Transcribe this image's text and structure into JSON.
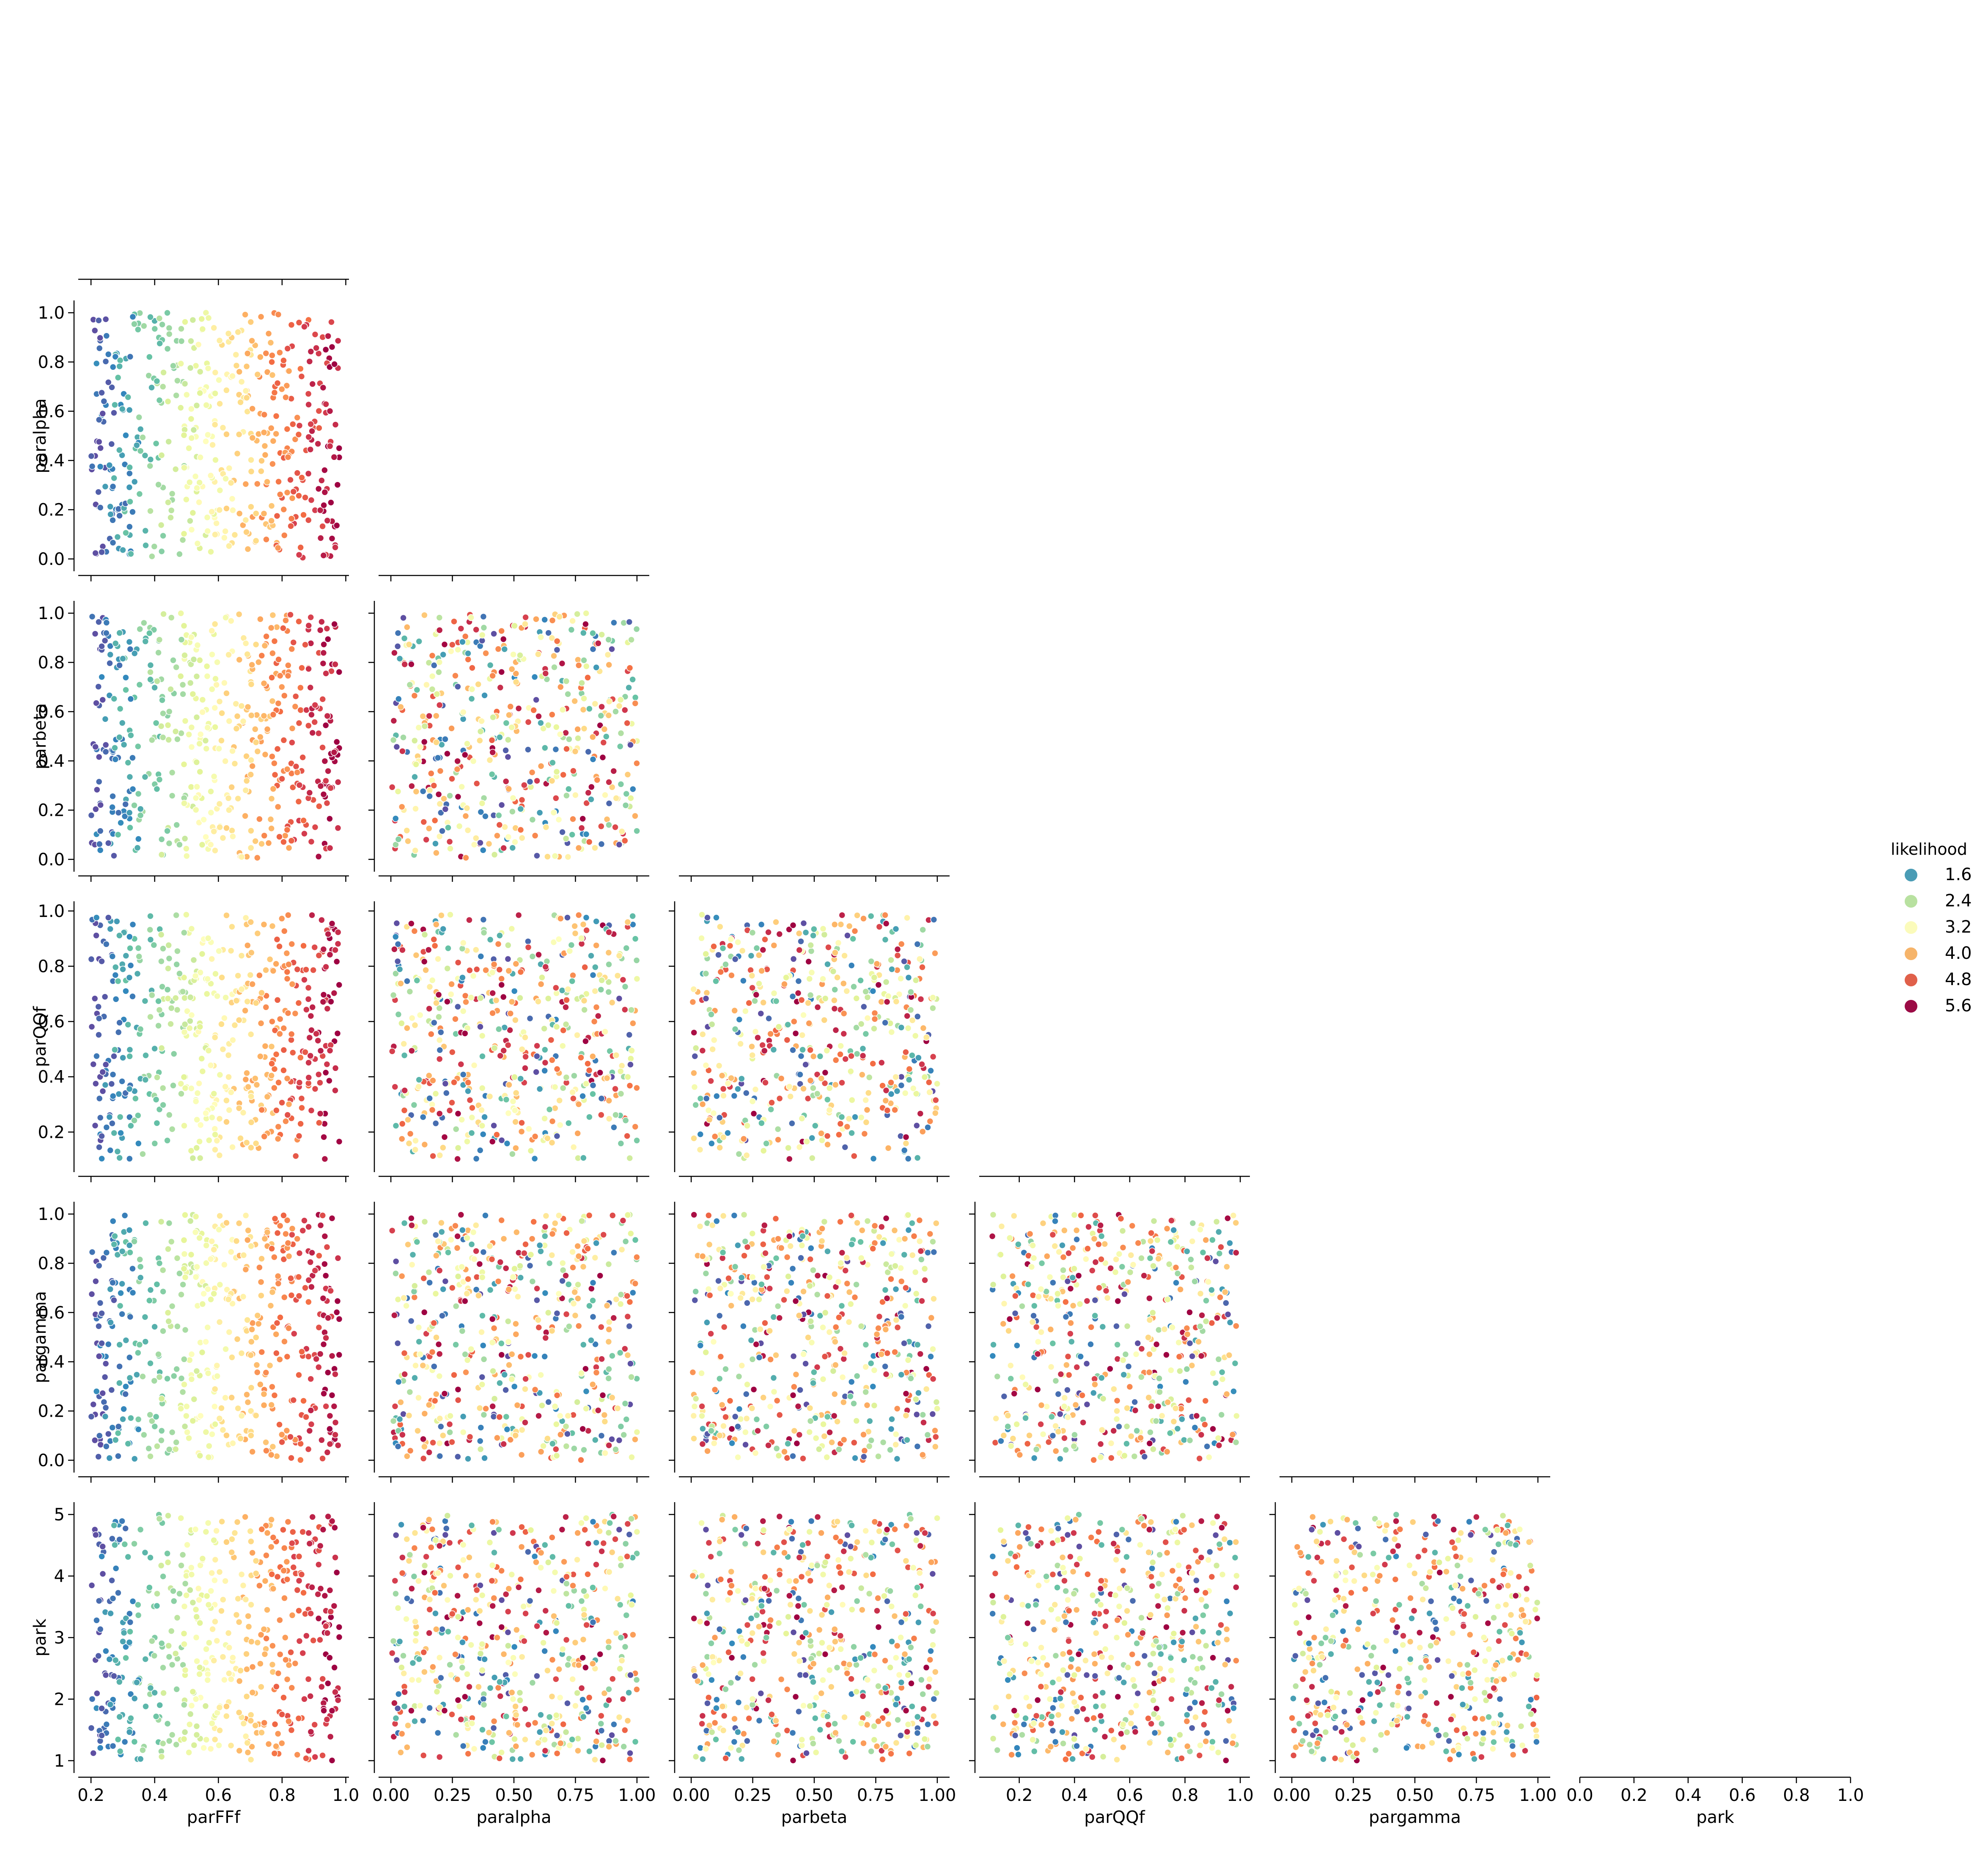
{
  "chart_data": {
    "type": "scatter",
    "kind": "corner pairplot (lower triangle)",
    "variables": [
      "parFFf",
      "paralpha",
      "parbeta",
      "parQQf",
      "pargamma",
      "park"
    ],
    "ranges": {
      "parFFf": [
        0.2,
        0.98
      ],
      "paralpha": [
        0.0,
        1.0
      ],
      "parbeta": [
        0.0,
        1.0
      ],
      "parQQf": [
        0.1,
        0.99
      ],
      "pargamma": [
        0.0,
        1.0
      ],
      "park": [
        1.0,
        5.0
      ]
    },
    "axis_limits": {
      "parFFf": [
        0.16,
        1.01
      ],
      "paralpha": [
        -0.05,
        1.05
      ],
      "parbeta": [
        -0.05,
        1.05
      ],
      "parQQf": [
        0.055,
        1.035
      ],
      "pargamma": [
        -0.05,
        1.05
      ],
      "park": [
        0.8,
        5.2
      ],
      "empty": [
        0.0,
        1.0
      ]
    },
    "ticks": {
      "parFFf": [
        "0.2",
        "0.4",
        "0.6",
        "0.8",
        "1.0"
      ],
      "paralpha": [
        "0.00",
        "0.25",
        "0.50",
        "0.75",
        "1.00"
      ],
      "paralpha_y": [
        "0.0",
        "0.2",
        "0.4",
        "0.6",
        "0.8",
        "1.0"
      ],
      "parbeta": [
        "0.00",
        "0.25",
        "0.50",
        "0.75",
        "1.00"
      ],
      "parbeta_y": [
        "0.0",
        "0.2",
        "0.4",
        "0.6",
        "0.8",
        "1.0"
      ],
      "parQQf": [
        "0.2",
        "0.4",
        "0.6",
        "0.8",
        "1.0"
      ],
      "parQQf_y": [
        "0.2",
        "0.4",
        "0.6",
        "0.8",
        "1.0"
      ],
      "pargamma": [
        "0.00",
        "0.25",
        "0.50",
        "0.75",
        "1.00"
      ],
      "pargamma_y": [
        "0.0",
        "0.2",
        "0.4",
        "0.6",
        "0.8",
        "1.0"
      ],
      "park_y": [
        "1",
        "2",
        "3",
        "4",
        "5"
      ],
      "empty": [
        "0.0",
        "0.2",
        "0.4",
        "0.6",
        "0.8",
        "1.0"
      ]
    },
    "xlabels": [
      "parFFf",
      "paralpha",
      "parbeta",
      "parQQf",
      "pargamma",
      "park"
    ],
    "ylabels": [
      "paralpha",
      "parbeta",
      "parQQf",
      "pargamma",
      "park"
    ],
    "n_points": 500,
    "color_variable": "likelihood",
    "likelihood_range": [
      1.0,
      6.0
    ],
    "likelihood_model": "likelihood rises with parFFf (about 1.0 at parFFf=0.2 to 6.0 at parFFf=1.0); other parameters show no visible relationship",
    "palette": "Spectral_r",
    "legend": {
      "title": "likelihood",
      "placement": "right",
      "entries": [
        {
          "label": "1.6",
          "color": "#4a9cb5"
        },
        {
          "label": "2.4",
          "color": "#b8e1a0"
        },
        {
          "label": "3.2",
          "color": "#fbfbbb"
        },
        {
          "label": "4.0",
          "color": "#f6b46a"
        },
        {
          "label": "4.8",
          "color": "#e0604a"
        },
        {
          "label": "5.6",
          "color": "#9b0b45"
        }
      ]
    },
    "grid": false
  }
}
